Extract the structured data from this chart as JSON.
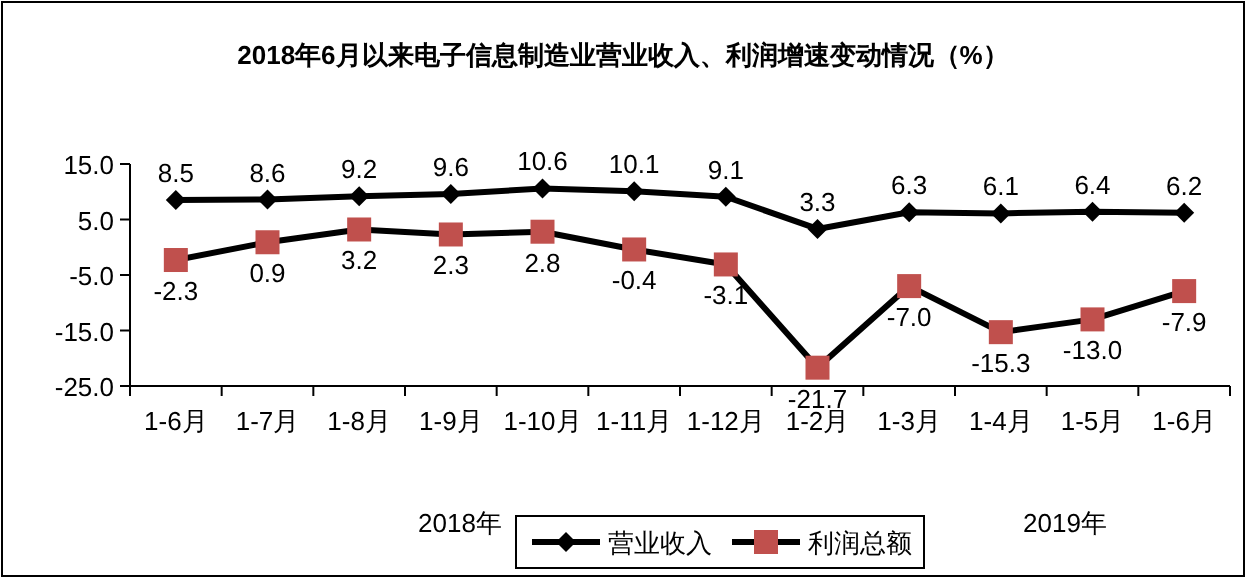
{
  "chart_data": {
    "type": "line",
    "title": "2018年6月以来电子信息制造业营业收入、利润增速变动情况（%）",
    "categories": [
      "1-6月",
      "1-7月",
      "1-8月",
      "1-9月",
      "1-10月",
      "1-11月",
      "1-12月",
      "1-2月",
      "1-3月",
      "1-4月",
      "1-5月",
      "1-6月"
    ],
    "series": [
      {
        "name": "营业收入",
        "color": "#000000",
        "marker": "diamond",
        "values": [
          8.5,
          8.6,
          9.2,
          9.6,
          10.6,
          10.1,
          9.1,
          3.3,
          6.3,
          6.1,
          6.4,
          6.2
        ],
        "value_labels": [
          "8.5",
          "8.6",
          "9.2",
          "9.6",
          "10.6",
          "10.1",
          "9.1",
          "3.3",
          "6.3",
          "6.1",
          "6.4",
          "6.2"
        ]
      },
      {
        "name": "利润总额",
        "color": "#c0504d",
        "marker": "square",
        "values": [
          -2.3,
          0.9,
          3.2,
          2.3,
          2.8,
          -0.4,
          -3.1,
          -21.7,
          -7.0,
          -15.3,
          -13.0,
          -7.9
        ],
        "value_labels": [
          "-2.3",
          "0.9",
          "3.2",
          "2.3",
          "2.8",
          "-0.4",
          "-3.1",
          "-21.7",
          "-7.0",
          "-15.3",
          "-13.0",
          "-7.9"
        ]
      }
    ],
    "ylim": [
      -25,
      15
    ],
    "yticks": [
      {
        "value": -25,
        "label": "-25.0"
      },
      {
        "value": -15,
        "label": "-15.0"
      },
      {
        "value": -5,
        "label": "-5.0"
      },
      {
        "value": 5,
        "label": "5.0"
      },
      {
        "value": 15,
        "label": "15.0"
      }
    ],
    "grid": false,
    "legend": "bottom",
    "annotations": [
      "2018年",
      "2019年"
    ]
  }
}
